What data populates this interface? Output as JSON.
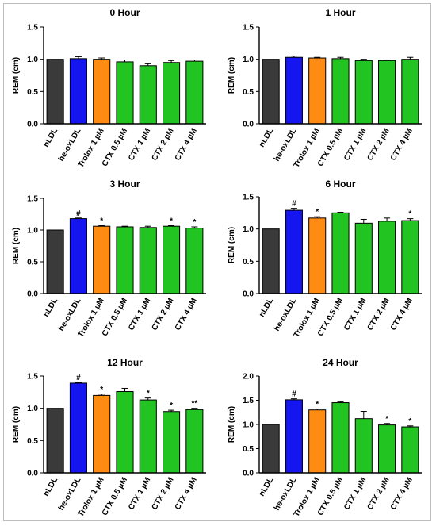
{
  "figure": {
    "categories": [
      "nLDL",
      "he-oxLDL",
      "Trolox 1 µM",
      "CTX 0.5 µM",
      "CTX 1 µM",
      "CTX 2 µM",
      "CTX 4 µM"
    ],
    "colors": [
      "#3a3a3a",
      "#1515f0",
      "#ff8c12",
      "#22c422",
      "#22c422",
      "#22c422",
      "#22c422"
    ]
  },
  "chart_data": [
    {
      "type": "bar",
      "title": "0 Hour",
      "ylabel": "REM (cm)",
      "ylim": [
        0,
        1.5
      ],
      "yticks": [
        "0.0",
        "0.5",
        "1.0",
        "1.5"
      ],
      "values": [
        1.0,
        1.01,
        1.0,
        0.96,
        0.9,
        0.95,
        0.97
      ],
      "errors": [
        0,
        0.03,
        0.02,
        0.03,
        0.03,
        0.03,
        0.02
      ],
      "annotations": [
        "",
        "",
        "",
        "",
        "",
        "",
        ""
      ]
    },
    {
      "type": "bar",
      "title": "1 Hour",
      "ylabel": "REM (cm)",
      "ylim": [
        0,
        1.5
      ],
      "yticks": [
        "0.0",
        "0.5",
        "1.0",
        "1.5"
      ],
      "values": [
        1.0,
        1.03,
        1.02,
        1.01,
        0.98,
        0.98,
        1.0
      ],
      "errors": [
        0,
        0.02,
        0.01,
        0.02,
        0.02,
        0.01,
        0.03
      ],
      "annotations": [
        "",
        "",
        "",
        "",
        "",
        "",
        ""
      ]
    },
    {
      "type": "bar",
      "title": "3 Hour",
      "ylabel": "REM (cm)",
      "ylim": [
        0,
        1.5
      ],
      "yticks": [
        "0.0",
        "0.5",
        "1.0",
        "1.5"
      ],
      "values": [
        1.0,
        1.18,
        1.06,
        1.05,
        1.04,
        1.06,
        1.03
      ],
      "errors": [
        0,
        0.01,
        0.01,
        0.01,
        0.02,
        0.01,
        0.02
      ],
      "annotations": [
        "",
        "#",
        "*",
        "",
        "",
        "*",
        "*"
      ]
    },
    {
      "type": "bar",
      "title": "6 Hour",
      "ylabel": "REM (cm)",
      "ylim": [
        0,
        1.5
      ],
      "yticks": [
        "0.0",
        "0.5",
        "1.0",
        "1.5"
      ],
      "values": [
        1.0,
        1.29,
        1.17,
        1.25,
        1.09,
        1.12,
        1.13
      ],
      "errors": [
        0,
        0.03,
        0.02,
        0.01,
        0.06,
        0.05,
        0.03
      ],
      "annotations": [
        "",
        "#",
        "*",
        "",
        "",
        "",
        "*"
      ]
    },
    {
      "type": "bar",
      "title": "12 Hour",
      "ylabel": "REM (cm)",
      "ylim": [
        0,
        1.5
      ],
      "yticks": [
        "0.0",
        "0.5",
        "1.0",
        "1.5"
      ],
      "values": [
        1.0,
        1.39,
        1.2,
        1.26,
        1.13,
        0.95,
        0.98
      ],
      "errors": [
        0,
        0.01,
        0.02,
        0.05,
        0.03,
        0.02,
        0.02
      ],
      "annotations": [
        "",
        "#",
        "*",
        "",
        "*",
        "*",
        "**"
      ]
    },
    {
      "type": "bar",
      "title": "24 Hour",
      "ylabel": "REM (cm)",
      "ylim": [
        0,
        2.0
      ],
      "yticks": [
        "0.0",
        "0.5",
        "1.0",
        "1.5",
        "2.0"
      ],
      "values": [
        1.0,
        1.51,
        1.3,
        1.45,
        1.12,
        0.99,
        0.95
      ],
      "errors": [
        0,
        0.02,
        0.02,
        0.02,
        0.15,
        0.03,
        0.02
      ],
      "annotations": [
        "",
        "#",
        "*",
        "",
        "",
        "*",
        "*"
      ]
    }
  ]
}
